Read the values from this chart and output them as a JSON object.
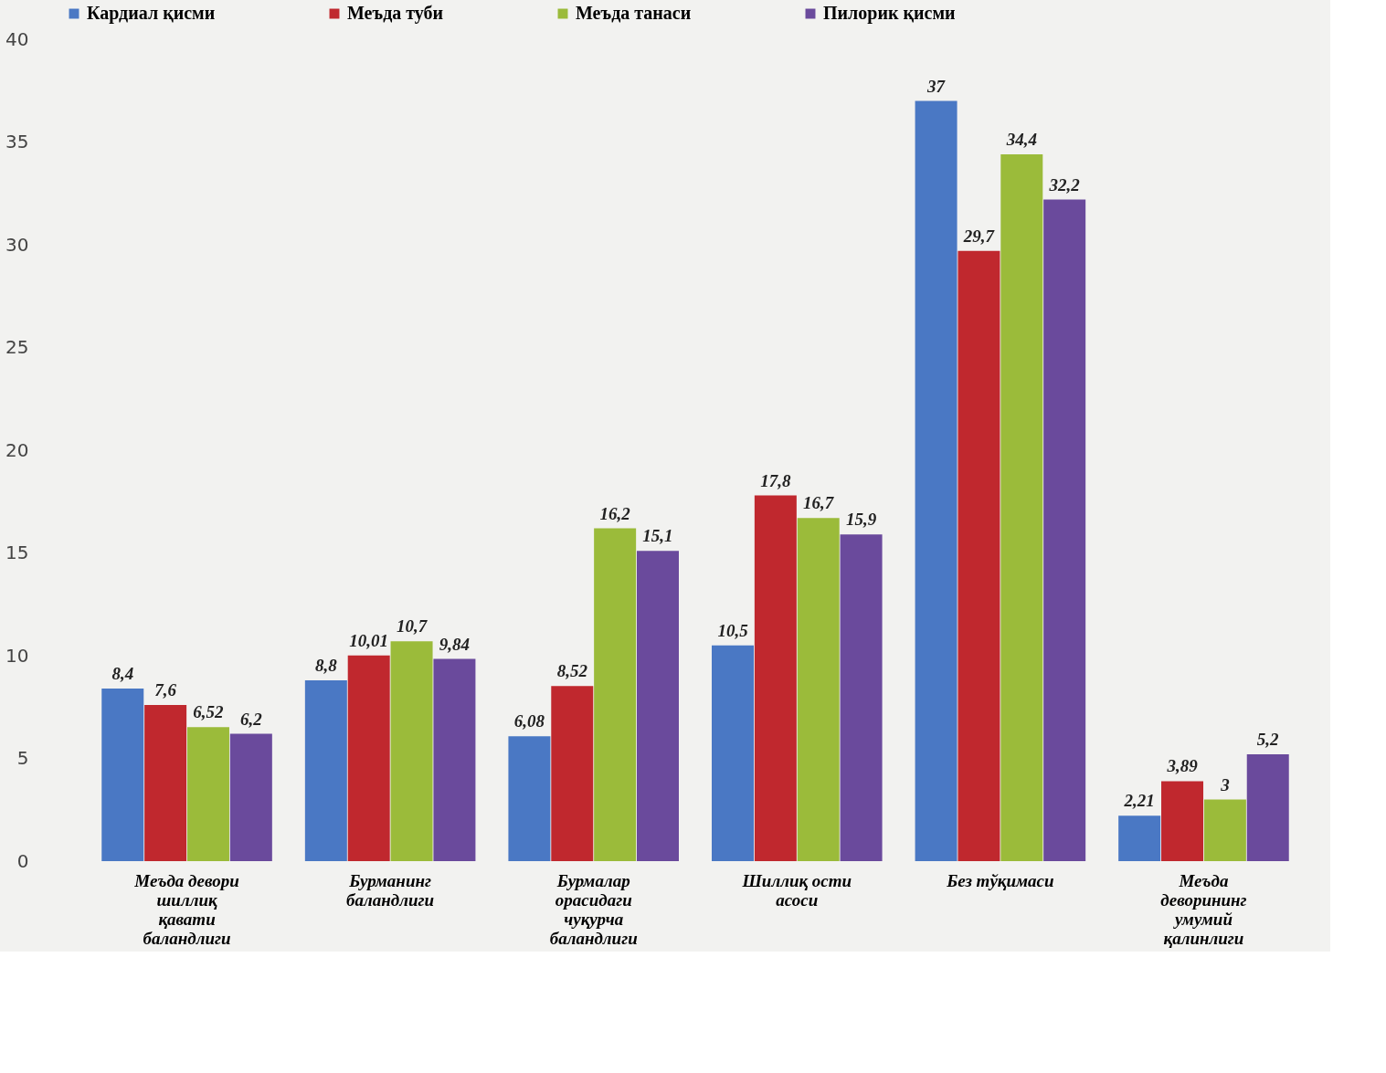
{
  "chart_data": {
    "type": "bar",
    "categories": [
      "Меъда девори шиллиқ қавати баландлиги",
      "Бурманинг баландлиги",
      "Бурмалар орасидаги чуқурча баландлиги",
      "Шиллиқ ости асоси",
      "Без тўқимаси",
      "Меъда деворининг умумий қалинлиги"
    ],
    "series": [
      {
        "name": "Кардиал қисми",
        "color": "#4a78c4",
        "values": [
          8.4,
          8.8,
          6.08,
          10.5,
          37,
          2.21
        ],
        "value_labels": [
          "8,4",
          "8,8",
          "6,08",
          "10,5",
          "37",
          "2,21"
        ]
      },
      {
        "name": "Меъда туби",
        "color": "#c0282e",
        "values": [
          7.6,
          10.01,
          8.52,
          17.8,
          29.7,
          3.89
        ],
        "value_labels": [
          "7,6",
          "10,01",
          "8,52",
          "17,8",
          "29,7",
          "3,89"
        ]
      },
      {
        "name": "Меъда танаси",
        "color": "#9bbb3a",
        "values": [
          6.52,
          10.7,
          16.2,
          16.7,
          34.4,
          3
        ],
        "value_labels": [
          "6,52",
          "10,7",
          "16,2",
          "16,7",
          "34,4",
          "3"
        ]
      },
      {
        "name": "Пилорик қисми",
        "color": "#6a4a9c",
        "values": [
          6.2,
          9.84,
          15.1,
          15.9,
          32.2,
          5.2
        ],
        "value_labels": [
          "6,2",
          "9,84",
          "15,1",
          "15,9",
          "32,2",
          "5,2"
        ]
      }
    ],
    "ylim": [
      0,
      40
    ],
    "yticks": [
      0,
      5,
      10,
      15,
      20,
      25,
      30,
      35,
      40
    ],
    "grid": false,
    "legend": "top"
  }
}
